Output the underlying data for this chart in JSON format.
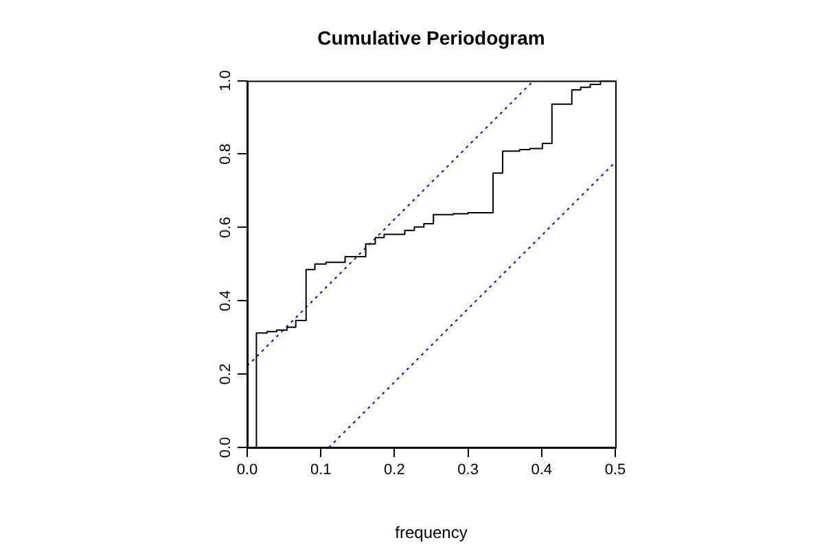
{
  "chart_data": {
    "type": "step",
    "title": "Cumulative Periodogram",
    "xlabel": "frequency",
    "xlim": [
      0,
      0.5
    ],
    "ylim": [
      0,
      1
    ],
    "xticks": [
      {
        "value": 0,
        "label": "0.0"
      },
      0.1,
      0.2,
      0.3,
      0.4,
      0.5
    ],
    "yticks": [
      {
        "value": 0,
        "label": "0.0"
      },
      0.2,
      0.4,
      0.6,
      0.8,
      {
        "value": 1,
        "label": "1.0"
      }
    ],
    "legend": false,
    "marker": "none",
    "series": [
      {
        "type": "step",
        "color": "#000000",
        "line_style": "solid",
        "x": [
          0.0125,
          0.0125,
          0.027,
          0.04,
          0.054,
          0.066,
          0.08,
          0.092,
          0.107,
          0.133,
          0.161,
          0.174,
          0.186,
          0.214,
          0.227,
          0.24,
          0.253,
          0.28,
          0.3,
          0.334,
          0.347,
          0.37,
          0.384,
          0.401,
          0.414,
          0.441,
          0.453,
          0.466,
          0.48,
          0.5
        ],
        "values": [
          0,
          0.312,
          0.316,
          0.32,
          0.328,
          0.346,
          0.485,
          0.5,
          0.505,
          0.52,
          0.555,
          0.572,
          0.581,
          0.592,
          0.601,
          0.61,
          0.635,
          0.637,
          0.64,
          0.748,
          0.808,
          0.812,
          0.815,
          0.829,
          0.936,
          0.975,
          0.982,
          0.99,
          1.0,
          1.0
        ]
      },
      {
        "type": "line",
        "color": "#0000ff",
        "line_style": "dotted",
        "x": [
          0,
          0.389
        ],
        "values": [
          0.222,
          1.0
        ]
      },
      {
        "type": "line",
        "color": "#0000ff",
        "line_style": "dotted",
        "x": [
          0.111,
          0.5
        ],
        "values": [
          0,
          0.778
        ]
      }
    ]
  }
}
